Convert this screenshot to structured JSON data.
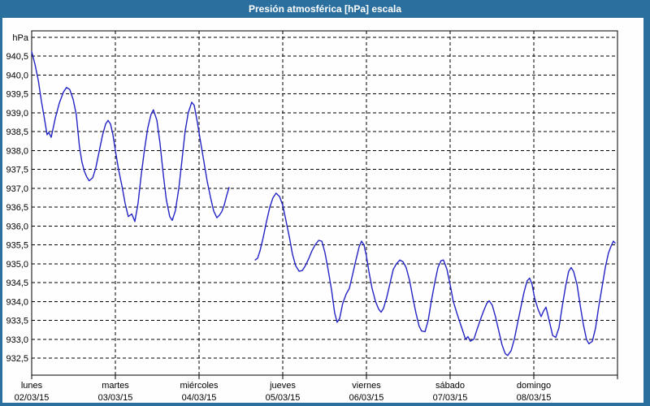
{
  "window": {
    "title": "Presión atmosférica [hPa] escala"
  },
  "colors": {
    "frame_blue": "#2b6f9f",
    "panel_bg": "#fefefe",
    "grid_black": "#000000",
    "line_blue": "#2424c4"
  },
  "chart_data": {
    "type": "line",
    "title": "Presión atmosférica [hPa] escala",
    "ylabel": "hPa",
    "unit_label": "hPa",
    "grid": "dashed",
    "legend": "none",
    "ylim": [
      932.05,
      941.17
    ],
    "xlim": [
      0,
      168
    ],
    "x_unit": "hours from lunes 02/03/15 00:00",
    "y_grid_top": 941.0,
    "y_ticks": [
      {
        "value": 940.5,
        "label": "940,5"
      },
      {
        "value": 940.0,
        "label": "940,0"
      },
      {
        "value": 939.5,
        "label": "939,5"
      },
      {
        "value": 939.0,
        "label": "939,0"
      },
      {
        "value": 938.5,
        "label": "938,5"
      },
      {
        "value": 938.0,
        "label": "938,0"
      },
      {
        "value": 937.5,
        "label": "937,5"
      },
      {
        "value": 937.0,
        "label": "937,0"
      },
      {
        "value": 936.5,
        "label": "936,5"
      },
      {
        "value": 936.0,
        "label": "936,0"
      },
      {
        "value": 935.5,
        "label": "935,5"
      },
      {
        "value": 935.0,
        "label": "935,0"
      },
      {
        "value": 934.5,
        "label": "934,5"
      },
      {
        "value": 934.0,
        "label": "934,0"
      },
      {
        "value": 933.5,
        "label": "933,5"
      },
      {
        "value": 933.0,
        "label": "933,0"
      },
      {
        "value": 932.5,
        "label": "932,5"
      }
    ],
    "x_ticks": [
      {
        "hour": 0,
        "day": "lunes",
        "date": "02/03/15"
      },
      {
        "hour": 24,
        "day": "martes",
        "date": "03/03/15"
      },
      {
        "hour": 48,
        "day": "miércoles",
        "date": "04/03/15"
      },
      {
        "hour": 72,
        "day": "jueves",
        "date": "05/03/15"
      },
      {
        "hour": 96,
        "day": "viernes",
        "date": "06/03/15"
      },
      {
        "hour": 120,
        "day": "sábado",
        "date": "07/03/15"
      },
      {
        "hour": 144,
        "day": "domingo",
        "date": "08/03/15"
      }
    ],
    "series": [
      {
        "name": "Presión atmosférica",
        "color": "#2424c4",
        "segments": [
          [
            [
              0,
              940.62
            ],
            [
              0.9,
              940.3
            ],
            [
              1.9,
              939.85
            ],
            [
              2.8,
              939.3
            ],
            [
              3.7,
              938.82
            ],
            [
              4.4,
              938.42
            ],
            [
              4.9,
              938.48
            ],
            [
              5.6,
              938.35
            ],
            [
              6.8,
              938.87
            ],
            [
              7.9,
              939.25
            ],
            [
              9.1,
              939.55
            ],
            [
              10,
              939.67
            ],
            [
              10.9,
              939.62
            ],
            [
              11.9,
              939.35
            ],
            [
              12.8,
              938.95
            ],
            [
              13.7,
              938.1
            ],
            [
              14.4,
              937.7
            ],
            [
              15.1,
              937.45
            ],
            [
              15.8,
              937.3
            ],
            [
              16.5,
              937.2
            ],
            [
              17.5,
              937.28
            ],
            [
              18.4,
              937.55
            ],
            [
              19.3,
              937.95
            ],
            [
              20.3,
              938.4
            ],
            [
              21.2,
              938.7
            ],
            [
              21.9,
              938.8
            ],
            [
              22.6,
              938.7
            ],
            [
              23.3,
              938.42
            ],
            [
              24,
              938.0
            ],
            [
              24.9,
              937.5
            ],
            [
              25.9,
              937.05
            ],
            [
              26.8,
              936.6
            ],
            [
              27.7,
              936.25
            ],
            [
              28.7,
              936.32
            ],
            [
              29.6,
              936.12
            ],
            [
              30.5,
              936.6
            ],
            [
              31.4,
              937.35
            ],
            [
              32.4,
              938.05
            ],
            [
              33.3,
              938.6
            ],
            [
              34.2,
              938.95
            ],
            [
              34.9,
              939.08
            ],
            [
              35.9,
              938.8
            ],
            [
              36.8,
              938.2
            ],
            [
              37.7,
              937.4
            ],
            [
              38.6,
              936.7
            ],
            [
              39.6,
              936.25
            ],
            [
              40.3,
              936.15
            ],
            [
              41.2,
              936.4
            ],
            [
              42.2,
              937.0
            ],
            [
              43.1,
              937.75
            ],
            [
              44,
              938.5
            ],
            [
              44.9,
              939.0
            ],
            [
              45.9,
              939.28
            ],
            [
              46.6,
              939.2
            ],
            [
              47.5,
              938.75
            ],
            [
              48.5,
              938.2
            ],
            [
              49.4,
              937.7
            ],
            [
              50.3,
              937.2
            ],
            [
              51.3,
              936.75
            ],
            [
              52.2,
              936.4
            ],
            [
              53.1,
              936.22
            ],
            [
              53.8,
              936.28
            ],
            [
              54.5,
              936.38
            ],
            [
              55.2,
              936.55
            ],
            [
              55.9,
              936.8
            ],
            [
              56.6,
              937.02
            ]
          ],
          [
            [
              64.1,
              935.1
            ],
            [
              64.8,
              935.15
            ],
            [
              65.5,
              935.35
            ],
            [
              66.4,
              935.7
            ],
            [
              67.3,
              936.1
            ],
            [
              68.3,
              936.5
            ],
            [
              69.2,
              936.75
            ],
            [
              70.1,
              936.87
            ],
            [
              71.1,
              936.78
            ],
            [
              72,
              936.55
            ],
            [
              72.9,
              936.15
            ],
            [
              73.9,
              935.7
            ],
            [
              74.8,
              935.25
            ],
            [
              75.7,
              934.95
            ],
            [
              76.7,
              934.8
            ],
            [
              77.6,
              934.82
            ],
            [
              78.5,
              934.95
            ],
            [
              79.5,
              935.15
            ],
            [
              80.4,
              935.35
            ],
            [
              81.3,
              935.5
            ],
            [
              82.3,
              935.62
            ],
            [
              83.2,
              935.6
            ],
            [
              84.1,
              935.3
            ],
            [
              85,
              934.85
            ],
            [
              86,
              934.3
            ],
            [
              86.9,
              933.7
            ],
            [
              87.6,
              933.45
            ],
            [
              88.3,
              933.55
            ],
            [
              89.2,
              933.95
            ],
            [
              90.2,
              934.2
            ],
            [
              91.1,
              934.35
            ],
            [
              92,
              934.7
            ],
            [
              93,
              935.1
            ],
            [
              93.9,
              935.45
            ],
            [
              94.6,
              935.6
            ],
            [
              95.3,
              935.5
            ],
            [
              96,
              935.2
            ],
            [
              96.7,
              934.8
            ],
            [
              97.6,
              934.35
            ],
            [
              98.6,
              934.0
            ],
            [
              99.5,
              933.8
            ],
            [
              100.2,
              933.72
            ],
            [
              100.9,
              933.82
            ],
            [
              101.8,
              934.1
            ],
            [
              102.8,
              934.5
            ],
            [
              103.7,
              934.85
            ],
            [
              104.6,
              935.0
            ],
            [
              105.6,
              935.1
            ],
            [
              106.5,
              935.05
            ],
            [
              107.4,
              934.9
            ],
            [
              108.4,
              934.55
            ],
            [
              109.3,
              934.1
            ],
            [
              110.2,
              933.7
            ],
            [
              111.1,
              933.35
            ],
            [
              111.8,
              933.22
            ],
            [
              112.8,
              933.2
            ],
            [
              113.7,
              933.5
            ],
            [
              114.6,
              934.0
            ],
            [
              115.6,
              934.5
            ],
            [
              116.5,
              934.9
            ],
            [
              117.4,
              935.08
            ],
            [
              118.1,
              935.1
            ],
            [
              119.1,
              934.85
            ],
            [
              120,
              934.45
            ],
            [
              120.9,
              934.0
            ],
            [
              121.9,
              933.7
            ],
            [
              122.8,
              933.45
            ],
            [
              123.7,
              933.2
            ],
            [
              124.4,
              933.0
            ],
            [
              125.1,
              933.07
            ],
            [
              125.8,
              932.95
            ],
            [
              126.8,
              933.0
            ],
            [
              127.7,
              933.25
            ],
            [
              128.6,
              933.5
            ],
            [
              129.6,
              933.75
            ],
            [
              130.5,
              933.95
            ],
            [
              131.2,
              934.02
            ],
            [
              132.1,
              933.9
            ],
            [
              133,
              933.6
            ],
            [
              134,
              933.2
            ],
            [
              134.9,
              932.85
            ],
            [
              135.8,
              932.62
            ],
            [
              136.5,
              932.57
            ],
            [
              137.5,
              932.7
            ],
            [
              138.4,
              933.0
            ],
            [
              139.3,
              933.4
            ],
            [
              140.3,
              933.85
            ],
            [
              141.2,
              934.25
            ],
            [
              142.1,
              934.55
            ],
            [
              142.8,
              934.62
            ],
            [
              143.5,
              934.45
            ],
            [
              144.2,
              934.1
            ],
            [
              145.2,
              933.8
            ],
            [
              146.1,
              933.6
            ],
            [
              146.8,
              933.75
            ],
            [
              147.5,
              933.85
            ],
            [
              148.4,
              933.5
            ],
            [
              149.4,
              933.1
            ],
            [
              150.3,
              933.05
            ],
            [
              151.2,
              933.3
            ],
            [
              152.2,
              933.9
            ],
            [
              153.1,
              934.4
            ],
            [
              154,
              934.8
            ],
            [
              154.7,
              934.9
            ],
            [
              155.4,
              934.8
            ],
            [
              156.4,
              934.45
            ],
            [
              157.3,
              933.9
            ],
            [
              158.2,
              933.4
            ],
            [
              159.1,
              933.0
            ],
            [
              159.8,
              932.88
            ],
            [
              160.8,
              932.95
            ],
            [
              161.7,
              933.3
            ],
            [
              162.6,
              933.85
            ],
            [
              163.6,
              934.4
            ],
            [
              164.5,
              934.9
            ],
            [
              165.4,
              935.28
            ],
            [
              166.1,
              935.45
            ],
            [
              166.8,
              935.6
            ],
            [
              167.3,
              935.55
            ]
          ]
        ]
      }
    ]
  }
}
